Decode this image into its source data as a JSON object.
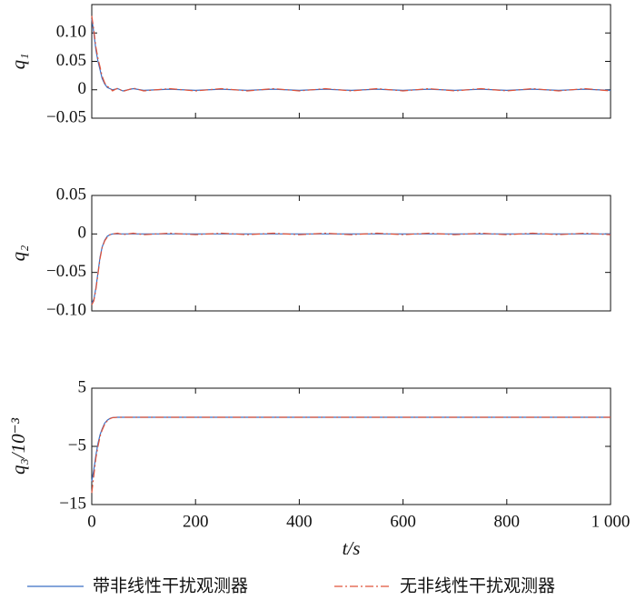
{
  "chart_data": [
    {
      "type": "line",
      "y_label": "q₁",
      "xlim": [
        0,
        1000
      ],
      "ylim": [
        -0.05,
        0.15
      ],
      "yticks": [
        {
          "value": 0.1,
          "label": "0.10"
        },
        {
          "value": 0.05,
          "label": "0.05"
        },
        0,
        {
          "value": -0.05,
          "label": "−0.05"
        }
      ],
      "x": [
        0,
        4,
        8,
        12,
        16,
        20,
        25,
        30,
        35,
        40,
        50,
        60,
        80,
        100,
        150,
        200,
        250,
        300,
        350,
        400,
        450,
        500,
        550,
        600,
        650,
        700,
        750,
        800,
        850,
        900,
        950,
        1000
      ],
      "series": [
        {
          "name": "带非线性干扰观测器",
          "color": "#3a6fc4",
          "linestyle": "solid",
          "values": [
            0.125,
            0.1,
            0.07,
            0.05,
            0.035,
            0.02,
            0.01,
            0.004,
            0.002,
            0,
            0.002,
            -0.002,
            0.002,
            -0.001,
            0.001,
            -0.001,
            0.001,
            -0.001,
            0.001,
            -0.001,
            0.001,
            -0.001,
            0.001,
            -0.001,
            0.001,
            -0.001,
            0.001,
            -0.001,
            0.001,
            -0.001,
            0.001,
            -0.001
          ]
        },
        {
          "name": "无非线性干扰观测器",
          "color": "#e0533a",
          "linestyle": "dashdot",
          "values": [
            0.13,
            0.105,
            0.075,
            0.055,
            0.04,
            0.024,
            0.012,
            0.006,
            0.003,
            -0.002,
            0.003,
            -0.003,
            0.003,
            -0.002,
            0.002,
            -0.002,
            0.002,
            -0.002,
            0.002,
            -0.002,
            0.002,
            -0.002,
            0.002,
            -0.002,
            0.002,
            -0.002,
            0.002,
            -0.002,
            0.002,
            -0.002,
            0.002,
            -0.002
          ]
        }
      ]
    },
    {
      "type": "line",
      "y_label": "q₂",
      "xlim": [
        0,
        1000
      ],
      "ylim": [
        -0.1,
        0.05
      ],
      "yticks": [
        {
          "value": 0.05,
          "label": "0.05"
        },
        0,
        {
          "value": -0.05,
          "label": "−0.05"
        },
        {
          "value": -0.1,
          "label": "−0.10"
        }
      ],
      "x": [
        0,
        4,
        8,
        12,
        16,
        20,
        25,
        30,
        35,
        40,
        50,
        60,
        80,
        100,
        150,
        200,
        250,
        300,
        350,
        400,
        450,
        500,
        550,
        600,
        650,
        700,
        750,
        800,
        850,
        900,
        950,
        1000
      ],
      "series": [
        {
          "color": "#3a6fc4",
          "linestyle": "solid",
          "values": [
            -0.09,
            -0.085,
            -0.07,
            -0.05,
            -0.03,
            -0.017,
            -0.008,
            -0.003,
            -0.001,
            0,
            0,
            0,
            0,
            0,
            0,
            0,
            0,
            0,
            0,
            0,
            0,
            0,
            0,
            0,
            0,
            0,
            0,
            0,
            0,
            0,
            0,
            0
          ]
        },
        {
          "color": "#e0533a",
          "linestyle": "dashdot",
          "values": [
            -0.092,
            -0.087,
            -0.072,
            -0.052,
            -0.032,
            -0.018,
            -0.009,
            -0.004,
            -0.001,
            0,
            0.001,
            -0.001,
            0.001,
            -0.001,
            0.001,
            -0.001,
            0.001,
            -0.001,
            0.001,
            -0.001,
            0.001,
            -0.001,
            0.001,
            -0.001,
            0.001,
            -0.001,
            0.001,
            -0.001,
            0.001,
            -0.001,
            0.001,
            -0.001
          ]
        }
      ]
    },
    {
      "type": "line",
      "y_label": "q₃/10⁻³",
      "x_label": "t/s",
      "xlim": [
        0,
        1000
      ],
      "ylim": [
        -15,
        5
      ],
      "xticks": [
        0,
        200,
        400,
        600,
        800,
        {
          "value": 1000,
          "label": "1 000"
        }
      ],
      "yticks": [
        5,
        {
          "value": -5,
          "label": "−5"
        },
        {
          "value": -15,
          "label": "−15"
        }
      ],
      "x": [
        0,
        4,
        8,
        12,
        16,
        20,
        25,
        30,
        35,
        40,
        50,
        60,
        80,
        100,
        150,
        200,
        250,
        300,
        350,
        400,
        450,
        500,
        550,
        600,
        650,
        700,
        750,
        800,
        850,
        900,
        950,
        1000
      ],
      "series": [
        {
          "color": "#3a6fc4",
          "linestyle": "solid",
          "values": [
            -11,
            -9,
            -6.5,
            -4.5,
            -3,
            -2,
            -1,
            -0.5,
            -0.2,
            -0.05,
            0,
            0,
            0,
            0,
            0,
            0,
            0,
            0,
            0,
            0,
            0,
            0,
            0,
            0,
            0,
            0,
            0,
            0,
            0,
            0,
            0,
            0
          ]
        },
        {
          "color": "#e0533a",
          "linestyle": "dashdot",
          "values": [
            -13,
            -10,
            -7,
            -5,
            -3.3,
            -2.2,
            -1.2,
            -0.6,
            -0.25,
            -0.07,
            0,
            0,
            0,
            0,
            0,
            0,
            0,
            0,
            0,
            0,
            0,
            0,
            0,
            0,
            0,
            0,
            0,
            0,
            0,
            0,
            0,
            0
          ]
        }
      ]
    }
  ]
}
